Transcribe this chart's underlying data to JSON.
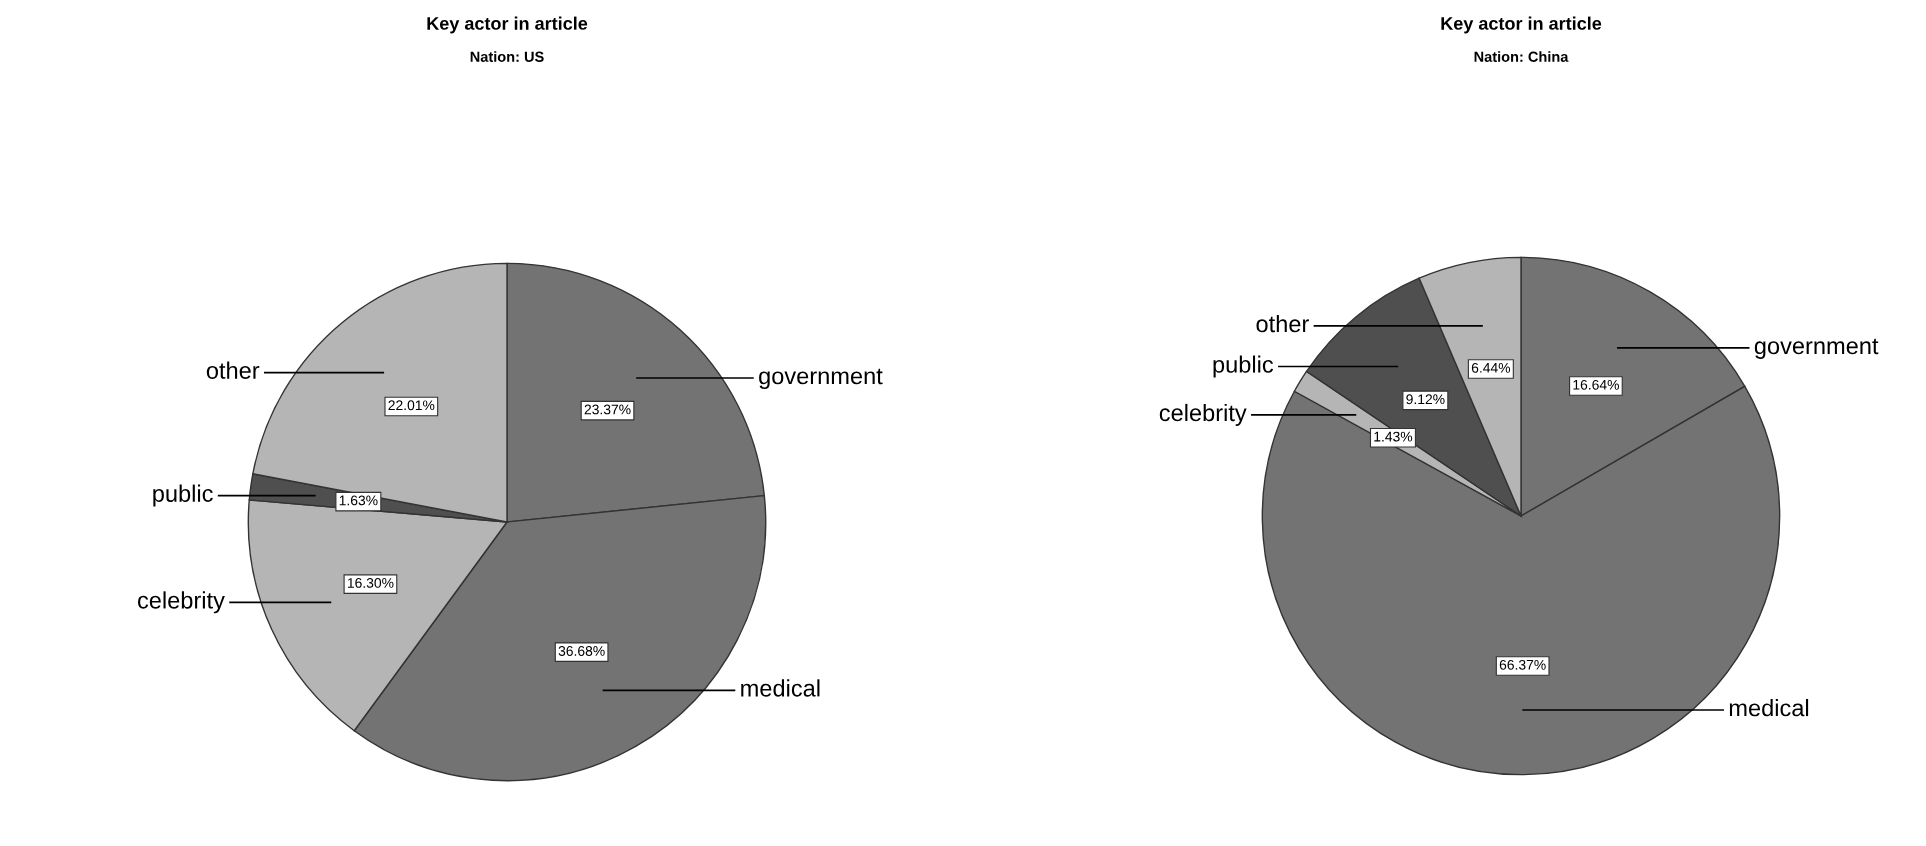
{
  "chart_data": [
    {
      "type": "pie",
      "title": "Key actor in article",
      "subtitle": "Nation: US",
      "categories": [
        "government",
        "medical",
        "celebrity",
        "public",
        "other"
      ],
      "values": [
        23.37,
        36.68,
        16.3,
        1.63,
        22.01
      ],
      "colors": [
        "#737373",
        "#737373",
        "#b5b5b5",
        "#4f4f4f",
        "#b5b5b5"
      ],
      "value_labels": [
        "23.37%",
        "36.68%",
        "16.30%",
        "1.63%",
        "22.01%"
      ]
    },
    {
      "type": "pie",
      "title": "Key actor in article",
      "subtitle": "Nation: China",
      "categories": [
        "government",
        "medical",
        "celebrity",
        "public",
        "other"
      ],
      "values": [
        16.64,
        66.37,
        1.43,
        9.12,
        6.44
      ],
      "colors": [
        "#737373",
        "#737373",
        "#b5b5b5",
        "#4f4f4f",
        "#b5b5b5"
      ],
      "value_labels": [
        "16.64%",
        "66.37%",
        "1.43%",
        "9.12%",
        "6.44%"
      ]
    }
  ]
}
